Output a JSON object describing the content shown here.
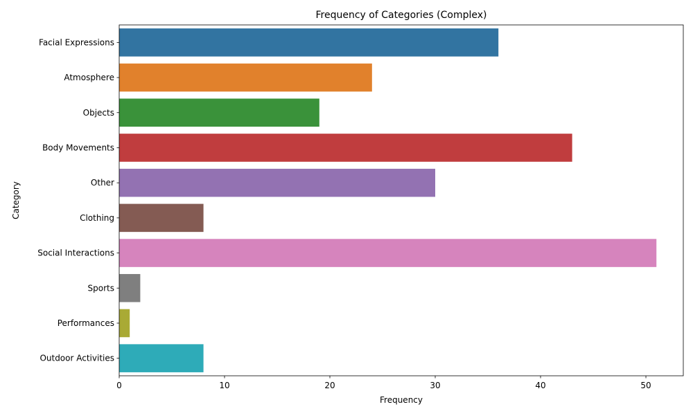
{
  "chart_data": {
    "type": "bar",
    "orientation": "horizontal",
    "title": "Frequency of Categories (Complex)",
    "xlabel": "Frequency",
    "ylabel": "Category",
    "xlim": [
      0,
      53.55
    ],
    "xticks": [
      0,
      10,
      20,
      30,
      40,
      50
    ],
    "grid": false,
    "legend": "none",
    "categories": [
      "Facial Expressions",
      "Atmosphere",
      "Objects",
      "Body Movements",
      "Other",
      "Clothing",
      "Social Interactions",
      "Sports",
      "Performances",
      "Outdoor Activities"
    ],
    "values": [
      36,
      24,
      19,
      43,
      30,
      8,
      51,
      2,
      1,
      8
    ],
    "colors": [
      "#3274a1",
      "#e1812c",
      "#3a923a",
      "#c03d3e",
      "#9372b2",
      "#845b53",
      "#d684bd",
      "#7f7f7f",
      "#a9aa35",
      "#2eabb8"
    ]
  }
}
